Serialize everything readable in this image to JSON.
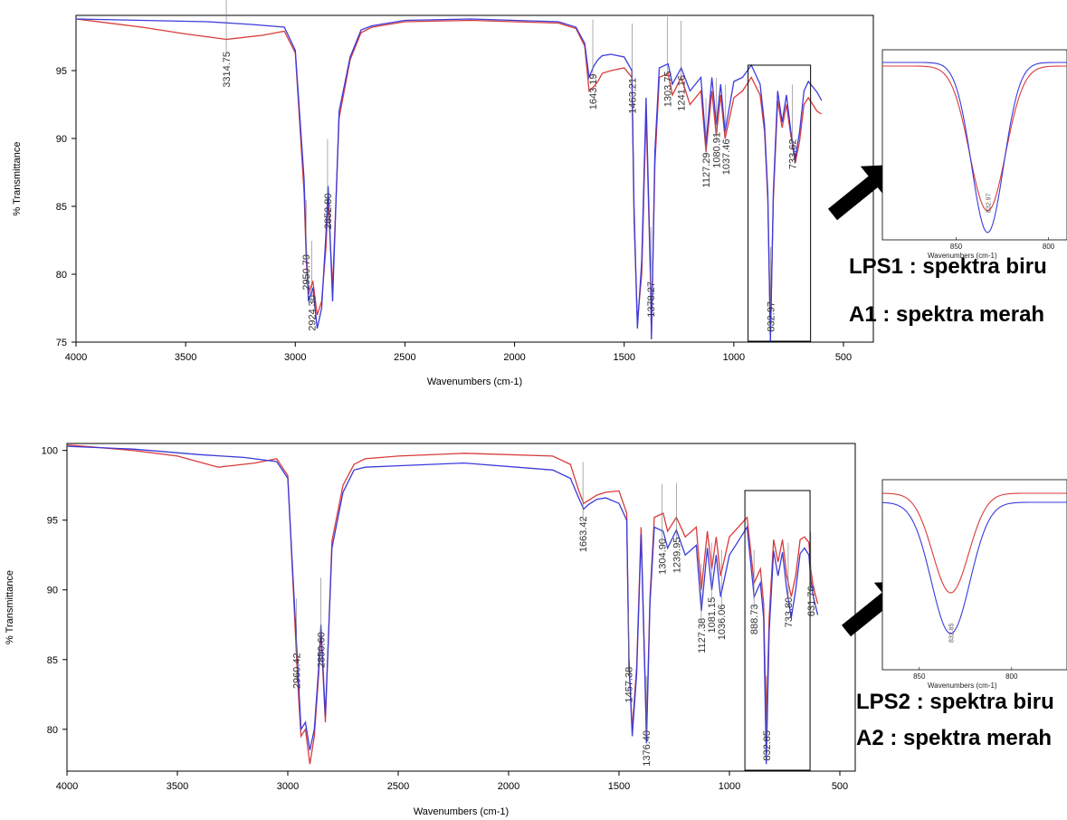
{
  "chart_data": [
    {
      "type": "line",
      "title": "",
      "xlabel": "Wavenumbers (cm-1)",
      "ylabel": "% Transmittance",
      "xlim": [
        4000,
        400
      ],
      "ylim": [
        75,
        99
      ],
      "x_ticks": [
        "4000",
        "3500",
        "3000",
        "2500",
        "2000",
        "1500",
        "1000",
        "500"
      ],
      "y_ticks": [
        "75",
        "80",
        "85",
        "90",
        "95"
      ],
      "grid": false,
      "legend_text": [
        "LPS1 : spektra biru",
        "A1 : spektra merah"
      ],
      "colors": {
        "blue": "#3b3bdb",
        "red": "#d93b3b"
      },
      "series": [
        {
          "color": "blue",
          "x": [
            4000,
            3700,
            3400,
            3200,
            3050,
            3000,
            2960,
            2950,
            2940,
            2920,
            2900,
            2880,
            2860,
            2850,
            2830,
            2800,
            2750,
            2700,
            2650,
            2500,
            2200,
            1800,
            1720,
            1680,
            1660,
            1640,
            1620,
            1600,
            1560,
            1500,
            1465,
            1455,
            1440,
            1420,
            1400,
            1380,
            1376,
            1360,
            1340,
            1300,
            1280,
            1240,
            1200,
            1150,
            1127,
            1100,
            1080,
            1060,
            1040,
            1000,
            960,
            920,
            880,
            860,
            845,
            833,
            820,
            800,
            780,
            760,
            740,
            720,
            700,
            680,
            660,
            640,
            620,
            600
          ],
          "y": [
            98.8,
            98.7,
            98.6,
            98.4,
            98.2,
            96.5,
            87,
            82,
            78,
            79,
            76,
            77.5,
            83,
            86.5,
            78,
            92,
            96,
            98,
            98.3,
            98.7,
            98.8,
            98.6,
            98.2,
            97,
            94.5,
            95.3,
            95.8,
            96.1,
            96.2,
            96,
            95,
            85,
            76,
            81,
            93,
            80,
            75.2,
            89,
            95.2,
            95.5,
            94,
            95.2,
            93.5,
            94.5,
            89.5,
            94.5,
            91,
            94,
            90.5,
            94.2,
            94.5,
            95.4,
            94,
            91,
            86,
            75,
            86,
            93.5,
            91.2,
            93.2,
            90.5,
            88.5,
            90.5,
            93.5,
            94.2,
            93.8,
            93.4,
            92.8
          ]
        },
        {
          "color": "red",
          "x": [
            4000,
            3700,
            3500,
            3314,
            3150,
            3050,
            3000,
            2960,
            2950,
            2940,
            2920,
            2900,
            2880,
            2860,
            2850,
            2830,
            2800,
            2750,
            2700,
            2650,
            2500,
            2200,
            1800,
            1720,
            1680,
            1660,
            1640,
            1620,
            1600,
            1560,
            1500,
            1465,
            1455,
            1440,
            1420,
            1400,
            1380,
            1376,
            1360,
            1340,
            1300,
            1280,
            1240,
            1200,
            1150,
            1127,
            1100,
            1080,
            1060,
            1040,
            1000,
            960,
            920,
            880,
            860,
            845,
            833,
            820,
            800,
            780,
            760,
            740,
            720,
            700,
            680,
            660,
            640,
            620,
            600
          ],
          "y": [
            98.8,
            98.2,
            97.7,
            97.3,
            97.6,
            97.9,
            96.3,
            86,
            81,
            78.5,
            79.5,
            77,
            78,
            82,
            85.5,
            79,
            91.5,
            95.8,
            97.8,
            98.2,
            98.6,
            98.7,
            98.5,
            98.1,
            96.8,
            93.5,
            93.8,
            94.2,
            94.8,
            95,
            95.2,
            94.5,
            84,
            76.5,
            80,
            92,
            79.5,
            75.5,
            88,
            94.5,
            94.8,
            93.2,
            94.5,
            92.5,
            93.5,
            89,
            93.5,
            90.2,
            93.2,
            90,
            93,
            93.5,
            94.5,
            93.2,
            90.5,
            85.5,
            75.5,
            85.5,
            92.8,
            90.8,
            92.5,
            90.2,
            88.2,
            89.8,
            92.5,
            93,
            92.5,
            92,
            91.8
          ]
        }
      ],
      "annotations": [
        "3314.75",
        "1643.19",
        "1463.21",
        "1378.27",
        "1303.75",
        "1241.16",
        "1127.29",
        "1080.91",
        "1037.46",
        "733.62",
        "832.97",
        "2950.79",
        "2924.30",
        "2852.80"
      ],
      "highlight_box_x": [
        935,
        650
      ],
      "inset": {
        "xlim": [
          890,
          790
        ],
        "x_ticks": [
          "850",
          "800"
        ],
        "xlabel": "Wavenumbers (cm-1)",
        "annotation": "832.97"
      }
    },
    {
      "type": "line",
      "title": "",
      "xlabel": "Wavenumbers (cm-1)",
      "ylabel": "% Transmittance",
      "xlim": [
        4000,
        400
      ],
      "ylim": [
        77,
        100.5
      ],
      "x_ticks": [
        "4000",
        "3500",
        "3000",
        "2500",
        "2000",
        "1500",
        "1000",
        "500"
      ],
      "y_ticks": [
        "80",
        "85",
        "90",
        "95",
        "100"
      ],
      "grid": false,
      "legend_text": [
        "LPS2 : spektra biru",
        "A2 : spektra merah"
      ],
      "colors": {
        "blue": "#3b3bdb",
        "red": "#d93b3b"
      },
      "series": [
        {
          "color": "blue",
          "x": [
            4000,
            3700,
            3400,
            3200,
            3050,
            3000,
            2960,
            2950,
            2940,
            2920,
            2900,
            2880,
            2860,
            2850,
            2830,
            2800,
            2750,
            2700,
            2650,
            2500,
            2200,
            1800,
            1720,
            1680,
            1660,
            1640,
            1620,
            1600,
            1560,
            1500,
            1465,
            1455,
            1440,
            1420,
            1400,
            1380,
            1376,
            1360,
            1340,
            1300,
            1280,
            1240,
            1200,
            1150,
            1127,
            1100,
            1080,
            1060,
            1040,
            1000,
            960,
            920,
            888,
            860,
            845,
            833,
            820,
            800,
            780,
            760,
            740,
            720,
            700,
            680,
            660,
            640,
            632,
            620,
            600
          ],
          "y": [
            100.3,
            100.1,
            99.7,
            99.5,
            99.2,
            98,
            86,
            83,
            80,
            80.5,
            78.5,
            80,
            84.5,
            87.5,
            81,
            93,
            97,
            98.6,
            98.8,
            98.9,
            99.1,
            98.6,
            98,
            96.5,
            95.8,
            96.1,
            96.3,
            96.5,
            96.6,
            96.2,
            95,
            85,
            79.5,
            84,
            94,
            82,
            79,
            89,
            94.5,
            94.2,
            93,
            94.3,
            92.5,
            93.2,
            88.5,
            93,
            90,
            92.5,
            89.5,
            92.5,
            93.5,
            94.5,
            89.5,
            90.5,
            88,
            77.5,
            87,
            92.8,
            91,
            92.7,
            90,
            88,
            90,
            92.6,
            93,
            92.5,
            90.8,
            89.5,
            88.2
          ]
        },
        {
          "color": "red",
          "x": [
            4000,
            3700,
            3500,
            3314,
            3150,
            3050,
            3000,
            2960,
            2950,
            2940,
            2920,
            2900,
            2880,
            2860,
            2850,
            2830,
            2800,
            2750,
            2700,
            2650,
            2500,
            2200,
            1800,
            1720,
            1680,
            1660,
            1640,
            1620,
            1600,
            1560,
            1500,
            1465,
            1455,
            1440,
            1420,
            1400,
            1380,
            1376,
            1360,
            1340,
            1300,
            1280,
            1240,
            1200,
            1150,
            1127,
            1100,
            1080,
            1060,
            1040,
            1000,
            960,
            920,
            888,
            860,
            845,
            833,
            820,
            800,
            780,
            760,
            740,
            720,
            700,
            680,
            660,
            640,
            632,
            620,
            600
          ],
          "y": [
            100.4,
            100,
            99.6,
            98.8,
            99.1,
            99.4,
            98.2,
            85,
            82,
            79.5,
            80,
            77.5,
            79.5,
            84,
            87,
            80.5,
            93.5,
            97.5,
            99,
            99.4,
            99.6,
            99.8,
            99.6,
            99,
            97,
            96.2,
            96.4,
            96.6,
            96.8,
            97,
            97.1,
            95.5,
            84.5,
            80,
            84.5,
            94.5,
            82.5,
            79.5,
            89.5,
            95.2,
            95.5,
            94.2,
            95.2,
            93.8,
            94.5,
            90,
            94.2,
            91.5,
            93.8,
            91,
            93.8,
            94.5,
            95.2,
            90.5,
            91.5,
            89,
            80,
            88,
            93.6,
            92,
            93.6,
            91,
            89.5,
            91,
            93.6,
            93.8,
            93.4,
            91.5,
            90.2,
            89
          ]
        }
      ],
      "annotations": [
        "1663.42",
        "1304.90",
        "1239.95",
        "1127.38",
        "1081.15",
        "1036.06",
        "888.73",
        "733.80",
        "631.76",
        "832.85",
        "1457.38",
        "1376.40",
        "2960.42",
        "2850.60"
      ],
      "highlight_box_x": [
        930,
        635
      ],
      "inset": {
        "xlim": [
          870,
          770
        ],
        "x_ticks": [
          "850",
          "800"
        ],
        "xlabel": "Wavenumbers (cm-1)",
        "annotation": "832.85"
      }
    }
  ]
}
